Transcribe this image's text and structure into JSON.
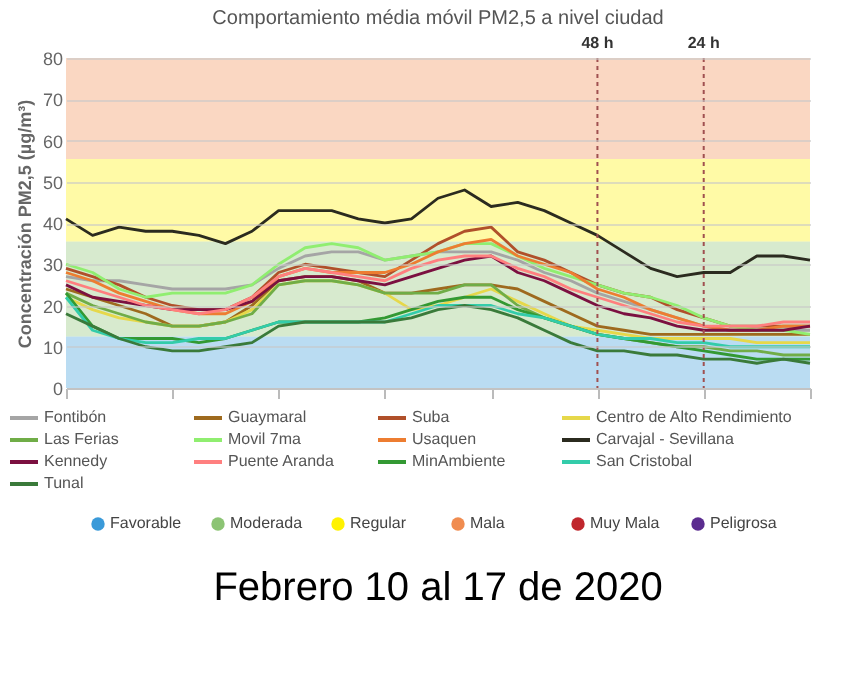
{
  "chart_data": {
    "type": "line",
    "title": "Comportamiento média móvil PM2,5 a nivel ciudad",
    "ylabel": "Concentración PM2,5 (µg/m³)",
    "categories": [
      null,
      null,
      null,
      null,
      null,
      null,
      null,
      null,
      null,
      null,
      null,
      null,
      null,
      null,
      null,
      null,
      null,
      null,
      null,
      null,
      null,
      null,
      null,
      null,
      null,
      null,
      null,
      null,
      null
    ],
    "ylim": [
      0,
      80
    ],
    "yticks": [
      0,
      10,
      20,
      30,
      40,
      50,
      60,
      70,
      80
    ],
    "grid": "y",
    "legend": "bottom",
    "tick_labels": "y",
    "line_style": "solid",
    "marker": "none",
    "series": [
      {
        "name": "Fontibón",
        "color": "#a5a5a5",
        "values": [
          27,
          26,
          26,
          25,
          24,
          24,
          24,
          25,
          29,
          32,
          33,
          33,
          31,
          32,
          33,
          33,
          33,
          31,
          28,
          26,
          23,
          21,
          19,
          17,
          15,
          14,
          14,
          14,
          14
        ]
      },
      {
        "name": "Guaymaral",
        "color": "#9e6a1e",
        "values": [
          24,
          22,
          20,
          18,
          15,
          15,
          16,
          20,
          26,
          27,
          27,
          26,
          23,
          23,
          24,
          25,
          25,
          24,
          21,
          18,
          15,
          14,
          13,
          13,
          13,
          13,
          13,
          13,
          13
        ]
      },
      {
        "name": "Suba",
        "color": "#b0502a",
        "values": [
          29,
          27,
          25,
          22,
          20,
          19,
          19,
          22,
          28,
          30,
          29,
          28,
          27,
          31,
          35,
          38,
          39,
          33,
          31,
          28,
          25,
          23,
          22,
          19,
          17,
          15,
          15,
          15,
          15
        ]
      },
      {
        "name": "Centro de Alto Rendimiento",
        "color": "#e6d84a",
        "values": [
          22,
          19,
          17,
          16,
          15,
          15,
          16,
          19,
          25,
          26,
          26,
          25,
          23,
          19,
          20,
          22,
          24,
          21,
          18,
          15,
          14,
          13,
          12,
          12,
          12,
          12,
          11,
          11,
          11
        ]
      },
      {
        "name": "Las Ferias",
        "color": "#70ad47",
        "values": [
          23,
          20,
          18,
          16,
          15,
          15,
          16,
          18,
          25,
          26,
          26,
          25,
          23,
          23,
          23,
          25,
          25,
          20,
          17,
          15,
          13,
          12,
          11,
          10,
          10,
          9,
          9,
          8,
          8
        ]
      },
      {
        "name": "Movil 7ma",
        "color": "#90ee70",
        "values": [
          30,
          28,
          24,
          22,
          23,
          23,
          23,
          25,
          30,
          34,
          35,
          34,
          31,
          32,
          33,
          35,
          35,
          32,
          29,
          27,
          25,
          23,
          22,
          20,
          17,
          15,
          14,
          14,
          13
        ]
      },
      {
        "name": "Usaquen",
        "color": "#ed7d31",
        "values": [
          28,
          26,
          23,
          21,
          19,
          18,
          18,
          21,
          27,
          29,
          28,
          28,
          28,
          30,
          33,
          35,
          36,
          32,
          30,
          28,
          24,
          22,
          19,
          17,
          15,
          14,
          14,
          15,
          15
        ]
      },
      {
        "name": "Carvajal - Sevillana",
        "color": "#2b2b1f",
        "values": [
          41,
          37,
          39,
          38,
          38,
          37,
          35,
          38,
          43,
          43,
          43,
          41,
          40,
          41,
          46,
          48,
          44,
          45,
          43,
          40,
          37,
          33,
          29,
          27,
          28,
          28,
          32,
          32,
          31
        ]
      },
      {
        "name": "Kennedy",
        "color": "#7b1040",
        "values": [
          25,
          22,
          21,
          20,
          19,
          19,
          19,
          21,
          26,
          27,
          27,
          26,
          25,
          27,
          29,
          31,
          32,
          28,
          26,
          23,
          20,
          18,
          17,
          15,
          14,
          14,
          14,
          14,
          15
        ]
      },
      {
        "name": "Puente Aranda",
        "color": "#ff7f7f",
        "values": [
          26,
          24,
          22,
          20,
          19,
          18,
          19,
          22,
          27,
          29,
          28,
          27,
          26,
          29,
          31,
          32,
          32,
          29,
          27,
          24,
          22,
          20,
          18,
          16,
          15,
          15,
          15,
          16,
          16
        ]
      },
      {
        "name": "MinAmbiente",
        "color": "#339933",
        "values": [
          23,
          15,
          12,
          12,
          12,
          11,
          12,
          14,
          16,
          16,
          16,
          16,
          17,
          19,
          21,
          22,
          22,
          19,
          17,
          15,
          13,
          12,
          11,
          10,
          9,
          8,
          7,
          7,
          7
        ]
      },
      {
        "name": "San Cristobal",
        "color": "#33ccaa",
        "values": [
          22,
          14,
          12,
          11,
          11,
          12,
          12,
          14,
          16,
          16,
          16,
          16,
          16,
          18,
          20,
          20,
          20,
          18,
          17,
          15,
          13,
          12,
          12,
          11,
          11,
          10,
          10,
          10,
          10
        ]
      },
      {
        "name": "Tunal",
        "color": "#3a7a3a",
        "values": [
          18,
          15,
          12,
          10,
          9,
          9,
          10,
          11,
          15,
          16,
          16,
          16,
          16,
          17,
          19,
          20,
          19,
          17,
          14,
          11,
          9,
          9,
          8,
          8,
          7,
          7,
          6,
          7,
          6
        ]
      }
    ],
    "bands": [
      {
        "axis": "y",
        "from": 0,
        "to": 12.5,
        "label": "Favorable",
        "color": "#3a9ad9"
      },
      {
        "axis": "y",
        "from": 12.5,
        "to": 35.5,
        "label": "Moderada",
        "color": "#8cc474"
      },
      {
        "axis": "y",
        "from": 35.5,
        "to": 55.5,
        "label": "Regular",
        "color": "#fff200"
      },
      {
        "axis": "y",
        "from": 55.5,
        "to": 80,
        "label": "Mala",
        "color": "#f08c50"
      }
    ],
    "annotations": [
      "48 h",
      "24 h",
      "Muy Mala",
      "Peligrosa",
      "Febrero 10 al 17 de 2020"
    ]
  }
}
